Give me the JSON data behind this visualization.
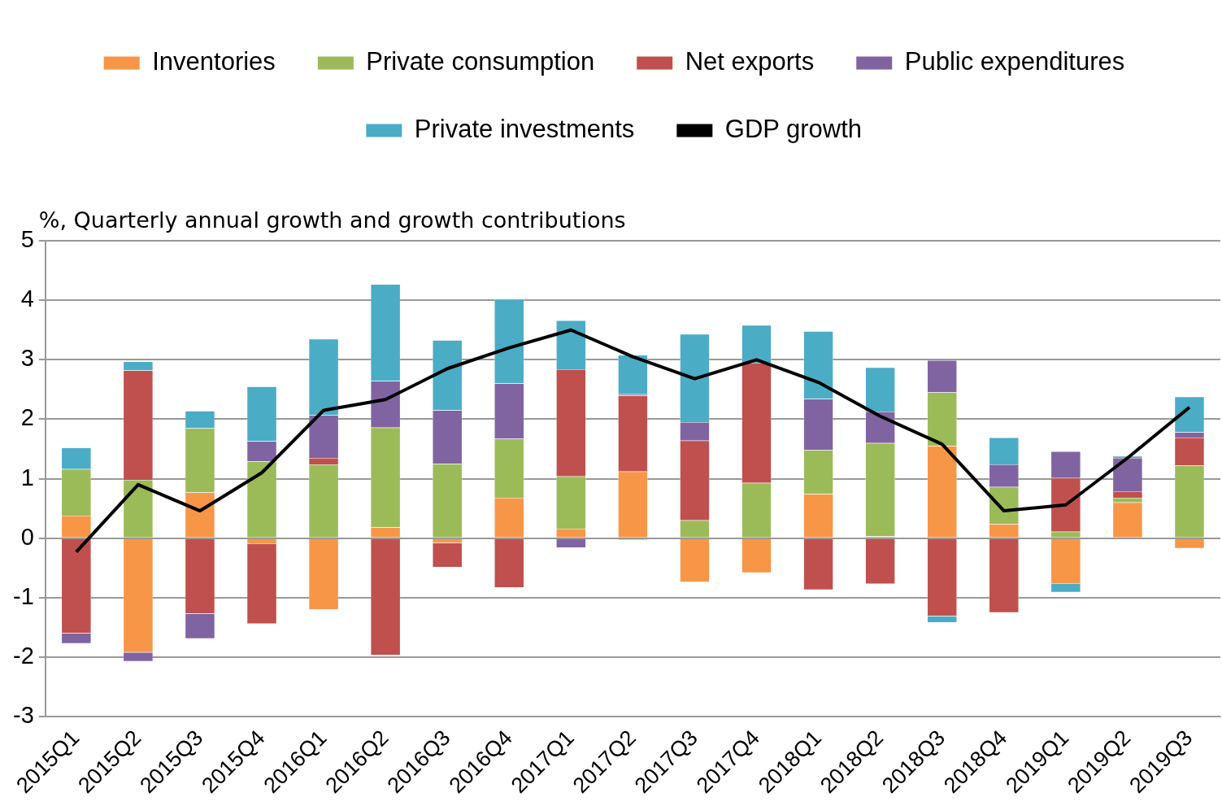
{
  "chart_data": {
    "type": "bar",
    "stacked": true,
    "ylabel": "%, Quarterly annual growth and growth contributions",
    "categories": [
      "2015Q1",
      "2015Q2",
      "2015Q3",
      "2015Q4",
      "2016Q1",
      "2016Q2",
      "2016Q3",
      "2016Q4",
      "2017Q1",
      "2017Q2",
      "2017Q3",
      "2017Q4",
      "2018Q1",
      "2018Q2",
      "2018Q3",
      "2018Q4",
      "2019Q1",
      "2019Q2",
      "2019Q3"
    ],
    "series": [
      {
        "name": "Inventories",
        "color": "#f79646",
        "values": [
          0.38,
          -1.92,
          0.77,
          -0.1,
          -1.2,
          0.18,
          -0.08,
          0.68,
          0.16,
          1.12,
          -0.74,
          -0.58,
          0.74,
          0.03,
          1.55,
          0.24,
          -0.77,
          0.6,
          -0.17
        ]
      },
      {
        "name": "Private consumption",
        "color": "#9bbb59",
        "values": [
          0.78,
          0.98,
          1.08,
          1.29,
          1.24,
          1.68,
          1.25,
          0.99,
          0.88,
          -0.03,
          0.3,
          0.93,
          0.74,
          1.57,
          0.9,
          0.62,
          0.11,
          0.08,
          1.22
        ]
      },
      {
        "name": "Net exports",
        "color": "#c0504d",
        "values": [
          -1.6,
          1.84,
          -1.27,
          -1.34,
          0.11,
          -1.97,
          -0.41,
          -0.83,
          1.8,
          1.28,
          1.34,
          2.02,
          -0.87,
          -0.77,
          -1.31,
          -1.25,
          0.9,
          0.11,
          0.47
        ]
      },
      {
        "name": "Public expenditures",
        "color": "#8064a2",
        "values": [
          -0.17,
          -0.15,
          -0.42,
          0.34,
          0.72,
          0.78,
          0.9,
          0.93,
          -0.16,
          0.02,
          0.31,
          null,
          0.86,
          0.53,
          0.54,
          0.38,
          0.45,
          0.56,
          0.09
        ]
      },
      {
        "name": "Private investments",
        "color": "#4bacc6",
        "values": [
          0.36,
          0.15,
          0.29,
          0.92,
          1.28,
          1.63,
          1.18,
          1.42,
          0.82,
          0.66,
          1.48,
          0.63,
          1.14,
          0.74,
          -0.11,
          0.45,
          -0.14,
          0.03,
          0.6
        ]
      },
      {
        "name": "GDP growth",
        "type": "line",
        "color": "#000000",
        "values": [
          -0.23,
          0.9,
          0.46,
          1.1,
          2.15,
          2.33,
          2.85,
          3.2,
          3.5,
          3.05,
          2.68,
          3.0,
          2.62,
          2.05,
          1.58,
          0.46,
          0.56,
          1.35,
          2.2
        ]
      }
    ],
    "ylim": [
      -3,
      5
    ],
    "yticks": [
      -3,
      -2,
      -1,
      0,
      1,
      2,
      3,
      4,
      5
    ],
    "grid": "y",
    "legend": "top",
    "marker": "none"
  }
}
